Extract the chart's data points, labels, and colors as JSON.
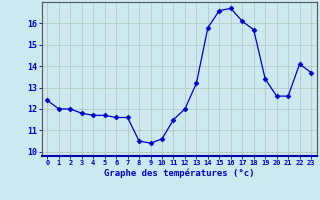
{
  "x": [
    0,
    1,
    2,
    3,
    4,
    5,
    6,
    7,
    8,
    9,
    10,
    11,
    12,
    13,
    14,
    15,
    16,
    17,
    18,
    19,
    20,
    21,
    22,
    23
  ],
  "y": [
    12.4,
    12.0,
    12.0,
    11.8,
    11.7,
    11.7,
    11.6,
    11.6,
    10.5,
    10.4,
    10.6,
    11.5,
    12.0,
    13.2,
    15.8,
    16.6,
    16.7,
    16.1,
    15.7,
    13.4,
    12.6,
    12.6,
    14.1,
    13.7
  ],
  "line_color": "#0000cc",
  "marker": "D",
  "marker_size": 2.5,
  "xlabel": "Graphe des températures (°c)",
  "xlim": [
    -0.5,
    23.5
  ],
  "ylim": [
    9.8,
    17.0
  ],
  "yticks": [
    10,
    11,
    12,
    13,
    14,
    15,
    16
  ],
  "xticks": [
    0,
    1,
    2,
    3,
    4,
    5,
    6,
    7,
    8,
    9,
    10,
    11,
    12,
    13,
    14,
    15,
    16,
    17,
    18,
    19,
    20,
    21,
    22,
    23
  ],
  "background_color": "#cce9f0",
  "plot_bg_color": "#cce9f0",
  "grid_color": "#b8c8c0",
  "axis_color": "#0000aa",
  "label_color": "#0000cc",
  "tick_color": "#0000cc",
  "spine_color": "#555555"
}
